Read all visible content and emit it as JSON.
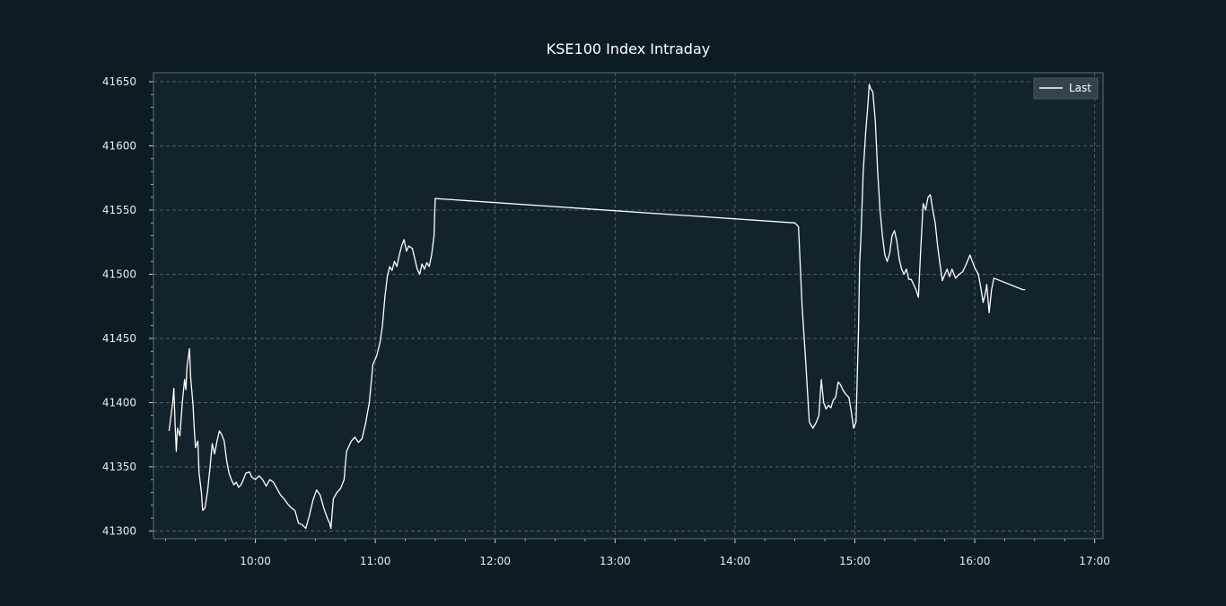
{
  "chart_data": {
    "type": "line",
    "title": "KSE100 Index Intraday",
    "xlabel": "",
    "ylabel": "",
    "x_unit": "time of day (hours)",
    "xlim": [
      9.15,
      17.07
    ],
    "ylim": [
      41294,
      41657
    ],
    "x_ticks": [
      {
        "value": 10,
        "label": "10:00"
      },
      {
        "value": 11,
        "label": "11:00"
      },
      {
        "value": 12,
        "label": "12:00"
      },
      {
        "value": 13,
        "label": "13:00"
      },
      {
        "value": 14,
        "label": "14:00"
      },
      {
        "value": 15,
        "label": "15:00"
      },
      {
        "value": 16,
        "label": "16:00"
      },
      {
        "value": 17,
        "label": "17:00"
      }
    ],
    "y_ticks": [
      41300,
      41350,
      41400,
      41450,
      41500,
      41550,
      41600,
      41650
    ],
    "grid": true,
    "legend_position": "top-right",
    "colors": {
      "background": "#0d1c23",
      "plot_background": "#13232b",
      "line": "#ffffff",
      "grid": "#5b6b73",
      "spine": "#5e6e75",
      "legend_background": "#33444c"
    },
    "series": [
      {
        "name": "Last",
        "points": [
          [
            9.28,
            41378
          ],
          [
            9.31,
            41400
          ],
          [
            9.32,
            41411
          ],
          [
            9.33,
            41385
          ],
          [
            9.34,
            41362
          ],
          [
            9.35,
            41380
          ],
          [
            9.37,
            41374
          ],
          [
            9.39,
            41400
          ],
          [
            9.41,
            41418
          ],
          [
            9.42,
            41410
          ],
          [
            9.43,
            41428
          ],
          [
            9.45,
            41442
          ],
          [
            9.46,
            41420
          ],
          [
            9.48,
            41398
          ],
          [
            9.49,
            41380
          ],
          [
            9.5,
            41365
          ],
          [
            9.52,
            41370
          ],
          [
            9.53,
            41345
          ],
          [
            9.55,
            41330
          ],
          [
            9.56,
            41316
          ],
          [
            9.58,
            41318
          ],
          [
            9.6,
            41330
          ],
          [
            9.62,
            41348
          ],
          [
            9.64,
            41368
          ],
          [
            9.66,
            41360
          ],
          [
            9.68,
            41370
          ],
          [
            9.7,
            41378
          ],
          [
            9.72,
            41375
          ],
          [
            9.74,
            41370
          ],
          [
            9.76,
            41355
          ],
          [
            9.78,
            41345
          ],
          [
            9.8,
            41340
          ],
          [
            9.82,
            41336
          ],
          [
            9.84,
            41338
          ],
          [
            9.86,
            41334
          ],
          [
            9.88,
            41336
          ],
          [
            9.9,
            41340
          ],
          [
            9.92,
            41345
          ],
          [
            9.95,
            41346
          ],
          [
            9.97,
            41342
          ],
          [
            10.0,
            41340
          ],
          [
            10.03,
            41343
          ],
          [
            10.06,
            41340
          ],
          [
            10.09,
            41335
          ],
          [
            10.12,
            41340
          ],
          [
            10.15,
            41338
          ],
          [
            10.18,
            41333
          ],
          [
            10.21,
            41328
          ],
          [
            10.24,
            41325
          ],
          [
            10.27,
            41321
          ],
          [
            10.3,
            41318
          ],
          [
            10.33,
            41316
          ],
          [
            10.36,
            41306
          ],
          [
            10.39,
            41305
          ],
          [
            10.42,
            41302
          ],
          [
            10.45,
            41312
          ],
          [
            10.48,
            41324
          ],
          [
            10.51,
            41332
          ],
          [
            10.54,
            41328
          ],
          [
            10.57,
            41318
          ],
          [
            10.6,
            41310
          ],
          [
            10.62,
            41306
          ],
          [
            10.63,
            41302
          ],
          [
            10.65,
            41325
          ],
          [
            10.68,
            41330
          ],
          [
            10.71,
            41333
          ],
          [
            10.74,
            41340
          ],
          [
            10.76,
            41362
          ],
          [
            10.78,
            41366
          ],
          [
            10.8,
            41370
          ],
          [
            10.83,
            41373
          ],
          [
            10.86,
            41369
          ],
          [
            10.89,
            41372
          ],
          [
            10.92,
            41384
          ],
          [
            10.95,
            41400
          ],
          [
            10.98,
            41430
          ],
          [
            11.01,
            41436
          ],
          [
            11.04,
            41447
          ],
          [
            11.06,
            41460
          ],
          [
            11.08,
            41482
          ],
          [
            11.1,
            41498
          ],
          [
            11.12,
            41506
          ],
          [
            11.14,
            41503
          ],
          [
            11.16,
            41510
          ],
          [
            11.18,
            41506
          ],
          [
            11.2,
            41515
          ],
          [
            11.22,
            41522
          ],
          [
            11.24,
            41527
          ],
          [
            11.26,
            41518
          ],
          [
            11.28,
            41522
          ],
          [
            11.31,
            41520
          ],
          [
            11.33,
            41512
          ],
          [
            11.35,
            41504
          ],
          [
            11.37,
            41500
          ],
          [
            11.39,
            41508
          ],
          [
            11.41,
            41504
          ],
          [
            11.43,
            41509
          ],
          [
            11.45,
            41506
          ],
          [
            11.47,
            41515
          ],
          [
            11.49,
            41530
          ],
          [
            11.5,
            41559
          ],
          [
            14.5,
            41540
          ],
          [
            14.53,
            41537
          ],
          [
            14.56,
            41475
          ],
          [
            14.59,
            41432
          ],
          [
            14.62,
            41385
          ],
          [
            14.65,
            41380
          ],
          [
            14.68,
            41385
          ],
          [
            14.7,
            41390
          ],
          [
            14.72,
            41418
          ],
          [
            14.74,
            41400
          ],
          [
            14.76,
            41395
          ],
          [
            14.78,
            41398
          ],
          [
            14.8,
            41396
          ],
          [
            14.82,
            41402
          ],
          [
            14.84,
            41404
          ],
          [
            14.86,
            41416
          ],
          [
            14.88,
            41414
          ],
          [
            14.9,
            41410
          ],
          [
            14.92,
            41407
          ],
          [
            14.95,
            41404
          ],
          [
            14.97,
            41393
          ],
          [
            14.99,
            41380
          ],
          [
            15.01,
            41385
          ],
          [
            15.03,
            41455
          ],
          [
            15.04,
            41508
          ],
          [
            15.05,
            41528
          ],
          [
            15.07,
            41580
          ],
          [
            15.09,
            41610
          ],
          [
            15.11,
            41634
          ],
          [
            15.12,
            41648
          ],
          [
            15.13,
            41645
          ],
          [
            15.15,
            41642
          ],
          [
            15.17,
            41620
          ],
          [
            15.19,
            41580
          ],
          [
            15.21,
            41550
          ],
          [
            15.23,
            41530
          ],
          [
            15.25,
            41515
          ],
          [
            15.27,
            41510
          ],
          [
            15.29,
            41516
          ],
          [
            15.31,
            41530
          ],
          [
            15.33,
            41534
          ],
          [
            15.35,
            41526
          ],
          [
            15.37,
            41512
          ],
          [
            15.39,
            41504
          ],
          [
            15.41,
            41500
          ],
          [
            15.43,
            41504
          ],
          [
            15.45,
            41496
          ],
          [
            15.47,
            41496
          ],
          [
            15.49,
            41492
          ],
          [
            15.51,
            41488
          ],
          [
            15.53,
            41482
          ],
          [
            15.55,
            41520
          ],
          [
            15.57,
            41555
          ],
          [
            15.59,
            41550
          ],
          [
            15.61,
            41560
          ],
          [
            15.63,
            41562
          ],
          [
            15.65,
            41550
          ],
          [
            15.67,
            41540
          ],
          [
            15.69,
            41522
          ],
          [
            15.71,
            41508
          ],
          [
            15.73,
            41495
          ],
          [
            15.75,
            41500
          ],
          [
            15.77,
            41504
          ],
          [
            15.79,
            41498
          ],
          [
            15.81,
            41504
          ],
          [
            15.84,
            41497
          ],
          [
            15.87,
            41500
          ],
          [
            15.9,
            41502
          ],
          [
            15.93,
            41508
          ],
          [
            15.96,
            41515
          ],
          [
            15.98,
            41510
          ],
          [
            16.0,
            41505
          ],
          [
            16.03,
            41500
          ],
          [
            16.05,
            41490
          ],
          [
            16.07,
            41478
          ],
          [
            16.09,
            41486
          ],
          [
            16.1,
            41492
          ],
          [
            16.12,
            41470
          ],
          [
            16.14,
            41488
          ],
          [
            16.16,
            41497
          ],
          [
            16.4,
            41488
          ],
          [
            16.42,
            41488
          ]
        ]
      }
    ]
  }
}
